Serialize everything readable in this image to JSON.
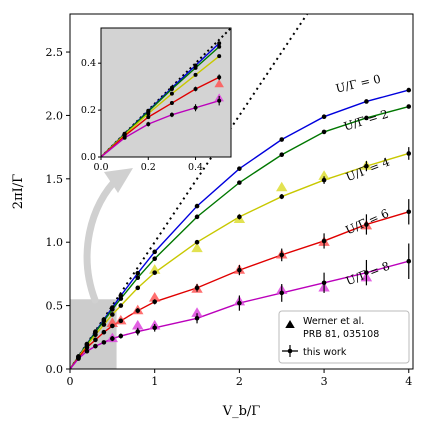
{
  "chart_data": {
    "type": "line",
    "xlabel": "V_b/Γ",
    "ylabel": "2πI/Γ",
    "xlim": [
      0,
      4.05
    ],
    "ylim": [
      0,
      2.8
    ],
    "xticks": [
      0,
      1,
      2,
      3,
      4
    ],
    "yticks": [
      0.0,
      0.5,
      1.0,
      1.5,
      2.0,
      2.5
    ],
    "xtick_labels": [
      "0",
      "1",
      "2",
      "3",
      "4"
    ],
    "ytick_labels": [
      "0.0",
      "0.5",
      "1.0",
      "1.5",
      "2.0",
      "2.5"
    ],
    "grid": false,
    "legend": {
      "placement": "bottom-right",
      "entries": [
        {
          "label_line1": "Werner et al.",
          "label_line2": "PRB 81, 035108",
          "marker": "triangle"
        },
        {
          "label_line1": "this work",
          "marker": "errorbar-dot"
        }
      ]
    },
    "reference_line": {
      "style": "dotted",
      "description": "y = x",
      "x": [
        0,
        2.8
      ]
    },
    "x": [
      0,
      0.1,
      0.2,
      0.3,
      0.4,
      0.5,
      0.6,
      0.8,
      1.0,
      1.5,
      2.0,
      2.5,
      3.0,
      3.5,
      4.0
    ],
    "series": [
      {
        "name": "U/Γ = 0",
        "color": "#0000dd",
        "y": [
          0,
          0.099,
          0.197,
          0.295,
          0.39,
          0.485,
          0.578,
          0.756,
          0.924,
          1.285,
          1.58,
          1.81,
          1.99,
          2.11,
          2.2
        ],
        "err": [
          0,
          0,
          0,
          0,
          0,
          0,
          0,
          0,
          0,
          0,
          0,
          0,
          0,
          0,
          0
        ]
      },
      {
        "name": "U/Γ = 2",
        "color": "#007700",
        "y": [
          0,
          0.098,
          0.194,
          0.29,
          0.38,
          0.47,
          0.555,
          0.72,
          0.87,
          1.2,
          1.47,
          1.69,
          1.87,
          1.98,
          2.07
        ],
        "err": [
          0,
          0,
          0,
          0,
          0,
          0,
          0,
          0,
          0,
          0,
          0,
          0,
          0,
          0,
          0
        ]
      },
      {
        "name": "U/Γ = 4",
        "color": "#c8c800",
        "y": [
          0,
          0.095,
          0.185,
          0.27,
          0.35,
          0.43,
          0.5,
          0.64,
          0.76,
          1.0,
          1.2,
          1.36,
          1.49,
          1.6,
          1.7
        ],
        "err": [
          0,
          0,
          0,
          0,
          0,
          0,
          0,
          0,
          0,
          0,
          0.02,
          0.02,
          0.03,
          0.04,
          0.05
        ]
      },
      {
        "name": "U/Γ = 6",
        "color": "#e00000",
        "y": [
          0,
          0.09,
          0.17,
          0.23,
          0.29,
          0.34,
          0.38,
          0.46,
          0.53,
          0.64,
          0.78,
          0.9,
          1.01,
          1.14,
          1.24
        ],
        "err": [
          0,
          0,
          0.005,
          0.008,
          0.01,
          0.012,
          0.015,
          0.02,
          0.02,
          0.03,
          0.04,
          0.05,
          0.06,
          0.08,
          0.1
        ]
      },
      {
        "name": "U/Γ = 8",
        "color": "#bb00bb",
        "y": [
          0,
          0.082,
          0.14,
          0.18,
          0.21,
          0.24,
          0.26,
          0.295,
          0.325,
          0.4,
          0.52,
          0.6,
          0.68,
          0.76,
          0.85
        ],
        "err": [
          0,
          0,
          0.01,
          0.01,
          0.015,
          0.02,
          0.02,
          0.03,
          0.03,
          0.04,
          0.06,
          0.07,
          0.08,
          0.1,
          0.14
        ]
      }
    ],
    "reference_points": [
      {
        "series": "U/Γ = 4",
        "color": "#dddd33",
        "x": [
          1.0,
          1.5,
          2.0,
          2.5,
          3.0,
          3.5
        ],
        "y": [
          0.78,
          0.95,
          1.18,
          1.43,
          1.52,
          1.6
        ]
      },
      {
        "series": "U/Γ = 6",
        "color": "#ff5555",
        "x": [
          0.5,
          0.6,
          0.8,
          1.0,
          1.5,
          2.0,
          2.5,
          3.0,
          3.5
        ],
        "y": [
          0.36,
          0.38,
          0.46,
          0.56,
          0.63,
          0.78,
          0.9,
          1.0,
          1.13
        ]
      },
      {
        "series": "U/Γ = 8",
        "color": "#dd44dd",
        "x": [
          0.5,
          0.8,
          1.0,
          1.5,
          2.0,
          2.5,
          3.0,
          3.5
        ],
        "y": [
          0.24,
          0.34,
          0.34,
          0.44,
          0.53,
          0.62,
          0.64,
          0.72
        ]
      }
    ],
    "inset": {
      "xlim": [
        0,
        0.55
      ],
      "ylim": [
        0,
        0.55
      ],
      "xticks": [
        0.0,
        0.2,
        0.4
      ],
      "yticks": [
        0.0,
        0.2,
        0.4
      ],
      "xtick_labels": [
        "0.0",
        "0.2",
        "0.4"
      ],
      "ytick_labels": [
        "0.0",
        "0.2",
        "0.4"
      ],
      "background": "#d3d3d3",
      "x": [
        0,
        0.1,
        0.2,
        0.3,
        0.4,
        0.5
      ],
      "reference_points": [
        {
          "series": "U/Γ = 6",
          "color": "#ff5555",
          "x": [
            0.5
          ],
          "y": [
            0.31
          ]
        },
        {
          "series": "U/Γ = 8",
          "color": "#dd44dd",
          "x": [
            0.5
          ],
          "y": [
            0.25
          ]
        }
      ]
    },
    "zoom_region": {
      "x": [
        0,
        0.55
      ],
      "y": [
        0,
        0.55
      ],
      "fill": "#cccccc"
    },
    "arrow_color": "#d0d0d0"
  }
}
